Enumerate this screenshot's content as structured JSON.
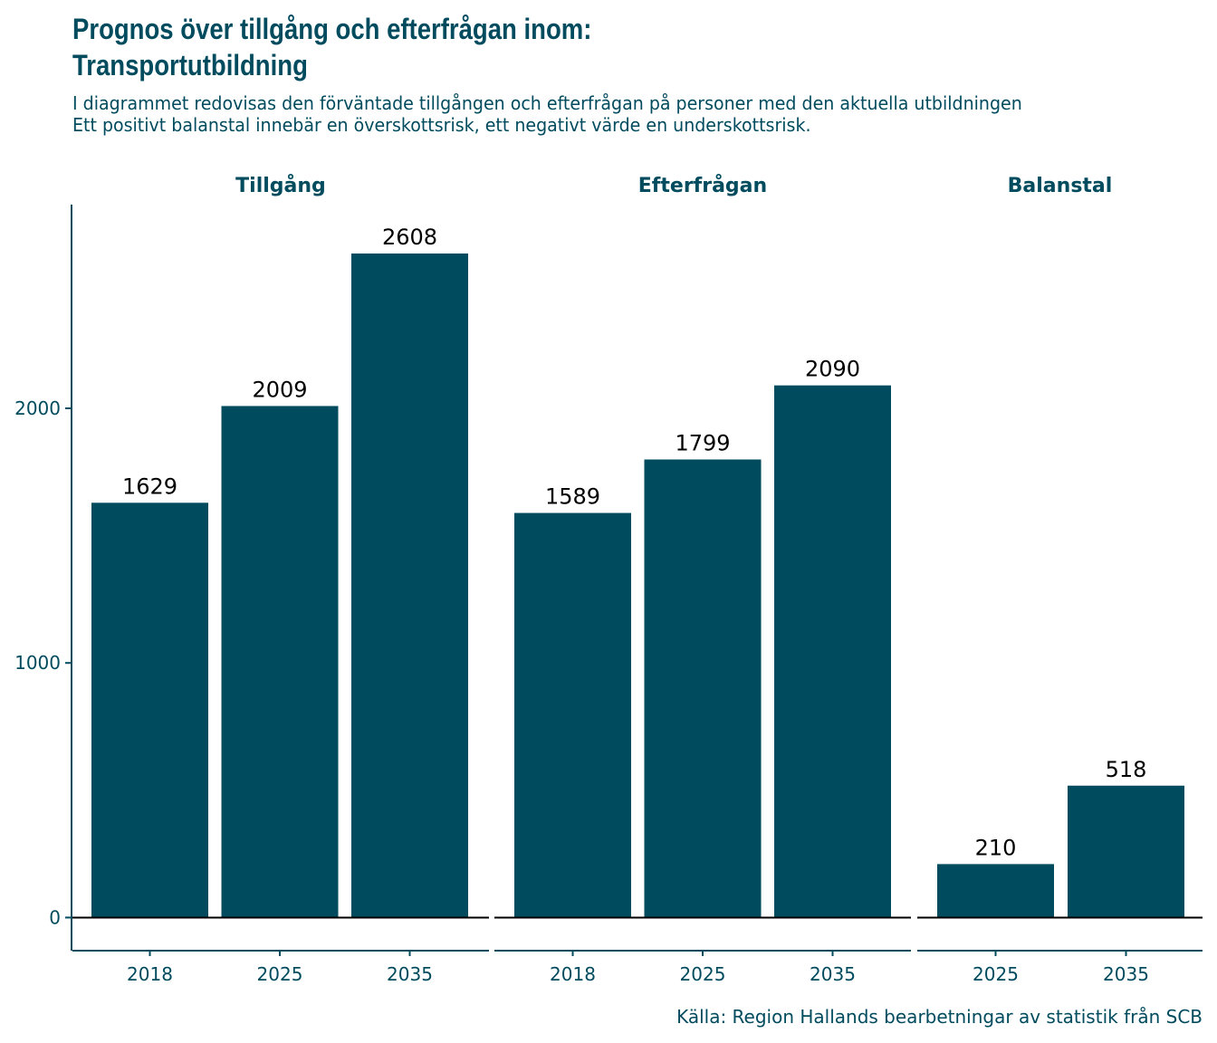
{
  "title": {
    "line1": "Prognos över tillgång och efterfrågan inom:",
    "line2": "Transportutbildning"
  },
  "subtitle": {
    "line1": "I diagrammet redovisas den förväntade tillgången och efterfrågan på personer med den aktuella utbildningen",
    "line2": "Ett positivt balanstal innebär en överskottsrisk, ett negativt värde en underskottsrisk."
  },
  "caption": "Källa: Region Hallands bearbetningar av statistik från SCB",
  "colors": {
    "bar": "#004b5e",
    "text": "#004b5e",
    "axis": "#004b5e",
    "zero_line": "#000000"
  },
  "chart_data": {
    "type": "bar",
    "faceted": true,
    "title": "Prognos över tillgång och efterfrågan inom: Transportutbildning",
    "ylim": [
      -130,
      2800
    ],
    "y_ticks": [
      0,
      1000,
      2000
    ],
    "y_tick_labels": [
      "0",
      "1000",
      "2000"
    ],
    "grid": false,
    "legend": "none",
    "panels": [
      {
        "name": "Tillgång",
        "categories": [
          "2018",
          "2025",
          "2035"
        ],
        "values": [
          1629,
          2009,
          2608
        ]
      },
      {
        "name": "Efterfrågan",
        "categories": [
          "2018",
          "2025",
          "2035"
        ],
        "values": [
          1589,
          1799,
          2090
        ]
      },
      {
        "name": "Balanstal",
        "categories": [
          "2025",
          "2035"
        ],
        "values": [
          210,
          518
        ]
      }
    ]
  }
}
